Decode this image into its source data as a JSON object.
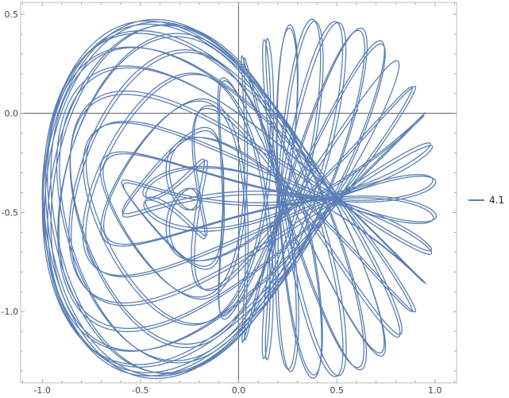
{
  "chart_data": {
    "type": "line",
    "title": "",
    "xlabel": "",
    "ylabel": "",
    "xlim": [
      -1.11,
      1.11
    ],
    "ylim": [
      -1.36,
      0.56
    ],
    "x_ticks": [
      -1.0,
      -0.5,
      0.0,
      0.5,
      1.0
    ],
    "x_tick_labels": [
      "-1.0",
      "-0.5",
      "0.0",
      "0.5",
      "1.0"
    ],
    "y_ticks": [
      0.5,
      0.0,
      -0.5,
      -1.0
    ],
    "y_tick_labels": [
      "0.5",
      "0.0",
      "-0.5",
      "-1.0"
    ],
    "grid": false,
    "frame": true,
    "axes_through_origin": true,
    "legend_position": "right",
    "series": [
      {
        "name": "4.1",
        "color": "#5b7fb5",
        "curve": {
          "kind": "parametric",
          "x_terms": [
            {
              "amp": 0.6,
              "freq": 0.9,
              "phase": 0.0
            },
            {
              "amp": 0.4,
              "freq": 1.45,
              "phase": 1.5708
            },
            {
              "amp": 0.009,
              "freq": 0.03,
              "phase": 0.0
            }
          ],
          "y_terms": [
            {
              "amp": 0.45,
              "freq": 1.8,
              "phase": 1.5708
            },
            {
              "amp": 0.45,
              "freq": 1.45,
              "phase": 0.0
            },
            {
              "amp": 0.009,
              "freq": 0.03,
              "phase": 1.5708
            }
          ],
          "y_offset": -0.43,
          "t_range": [
            0,
            250
          ]
        }
      }
    ]
  }
}
